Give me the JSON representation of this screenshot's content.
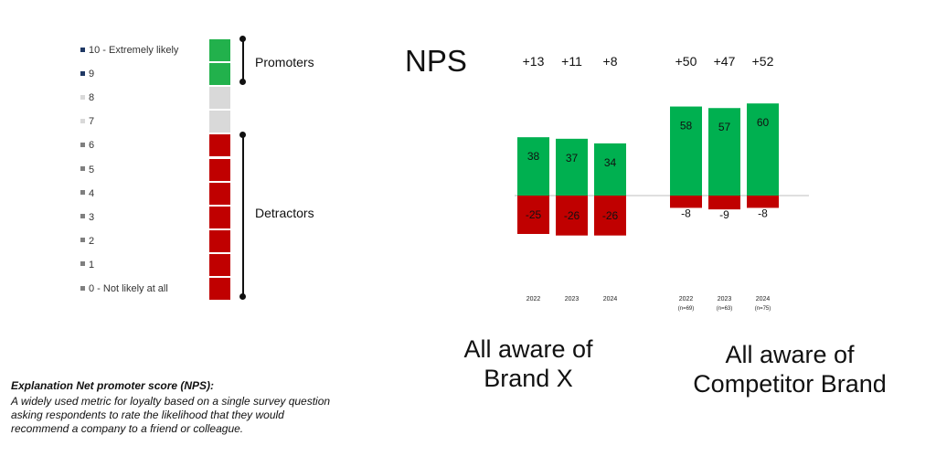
{
  "scale": {
    "items": [
      {
        "label": "10 - Extremely likely",
        "marker_color": "#1f3864",
        "box_color": "#22b14c"
      },
      {
        "label": "9",
        "marker_color": "#1f3864",
        "box_color": "#22b14c"
      },
      {
        "label": "8",
        "marker_color": "#d9d9d9",
        "box_color": "#d9d9d9"
      },
      {
        "label": "7",
        "marker_color": "#d9d9d9",
        "box_color": "#d9d9d9"
      },
      {
        "label": "6",
        "marker_color": "#7f7f7f",
        "box_color": "#c00000"
      },
      {
        "label": "5",
        "marker_color": "#7f7f7f",
        "box_color": "#c00000"
      },
      {
        "label": "4",
        "marker_color": "#7f7f7f",
        "box_color": "#c00000"
      },
      {
        "label": "3",
        "marker_color": "#7f7f7f",
        "box_color": "#c00000"
      },
      {
        "label": "2",
        "marker_color": "#7f7f7f",
        "box_color": "#c00000"
      },
      {
        "label": "1",
        "marker_color": "#7f7f7f",
        "box_color": "#c00000"
      },
      {
        "label": "0 - Not likely at all",
        "marker_color": "#7f7f7f",
        "box_color": "#c00000"
      }
    ],
    "promoters_label": "Promoters",
    "detractors_label": "Detractors"
  },
  "nps_title": "NPS",
  "explanation": {
    "title": "Explanation Net promoter score (NPS):",
    "text": "A widely used metric for loyalty based on a single survey question asking respondents to rate the likelihood that they would recommend a company to a friend or colleague."
  },
  "captions": {
    "brand_x": "All aware of Brand X",
    "competitor": "All aware of Competitor Brand"
  },
  "colors": {
    "promoters": "#00b050",
    "detractors": "#c00000",
    "baseline": "#bfbfbf"
  },
  "chart_data": {
    "type": "bar",
    "stacked": "diverging",
    "groups": [
      {
        "name": "All aware of Brand X",
        "categories": [
          "2022",
          "2023",
          "2024"
        ],
        "sample_sizes": [
          "",
          "",
          ""
        ],
        "promoters": [
          38,
          37,
          34
        ],
        "detractors": [
          -25,
          -26,
          -26
        ],
        "nps_labels": [
          "+13",
          "+11",
          "+8"
        ]
      },
      {
        "name": "All aware of Competitor Brand",
        "categories": [
          "2022",
          "2023",
          "2024"
        ],
        "sample_sizes": [
          "(n=69)",
          "(n=63)",
          "(n=75)"
        ],
        "promoters": [
          58,
          57,
          60
        ],
        "detractors": [
          -8,
          -9,
          -8
        ],
        "nps_labels": [
          "+50",
          "+47",
          "+52"
        ]
      }
    ],
    "title": "NPS",
    "grid": false
  }
}
